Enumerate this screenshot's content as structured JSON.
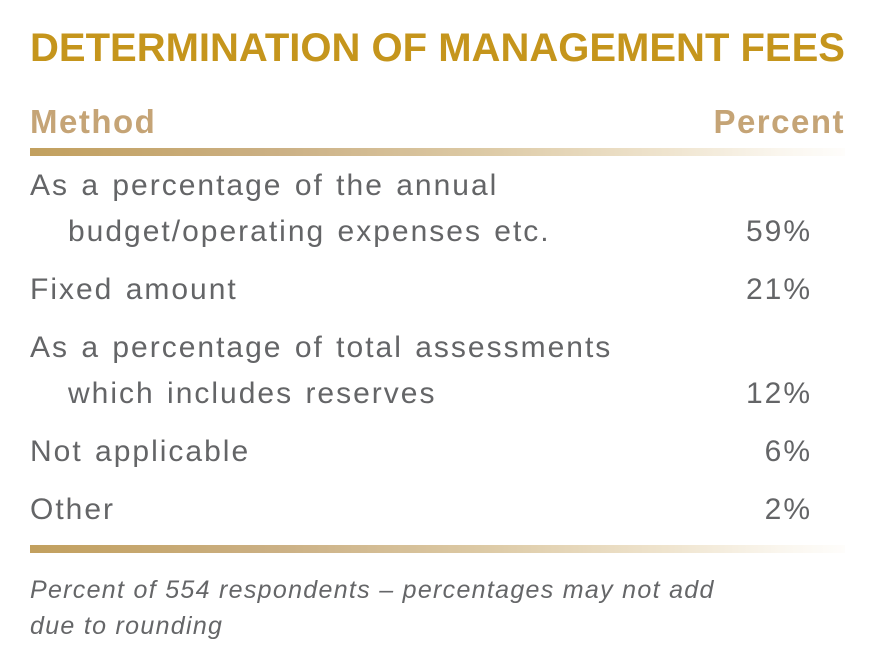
{
  "title": {
    "text": "DETERMINATION OF MANAGEMENT FEES",
    "color": "#C5951C"
  },
  "table": {
    "headers": {
      "method": "Method",
      "percent": "Percent"
    },
    "header_color": "#C5A476",
    "body_text_color": "#646567",
    "rule_gradient": {
      "start": "#C2A05E",
      "end": "#FEFDFB"
    },
    "rows": [
      {
        "lines": [
          "As a percentage of the annual",
          "budget/operating expenses etc."
        ],
        "percent": "59%"
      },
      {
        "lines": [
          "Fixed amount"
        ],
        "percent": "21%"
      },
      {
        "lines": [
          "As a percentage of total assessments",
          "which includes reserves"
        ],
        "percent": "12%"
      },
      {
        "lines": [
          "Not applicable"
        ],
        "percent": "6%"
      },
      {
        "lines": [
          "Other"
        ],
        "percent": "2%"
      }
    ]
  },
  "footnote": {
    "lines": [
      "Percent of 554 respondents – percentages may not add",
      "due to rounding"
    ],
    "full_text": "Percent of 554 respondents – percentages may not add due to rounding"
  },
  "chart_data": {
    "type": "table",
    "title": "DETERMINATION OF MANAGEMENT FEES",
    "columns": [
      "Method",
      "Percent"
    ],
    "rows": [
      [
        "As a percentage of the annual budget/operating expenses etc.",
        "59%"
      ],
      [
        "Fixed amount",
        "21%"
      ],
      [
        "As a percentage of total assessments which includes reserves",
        "12%"
      ],
      [
        "Not applicable",
        "6%"
      ],
      [
        "Other",
        "2%"
      ]
    ],
    "values": [
      59,
      21,
      12,
      6,
      2
    ],
    "note": "Percent of 554 respondents – percentages may not add due to rounding"
  }
}
